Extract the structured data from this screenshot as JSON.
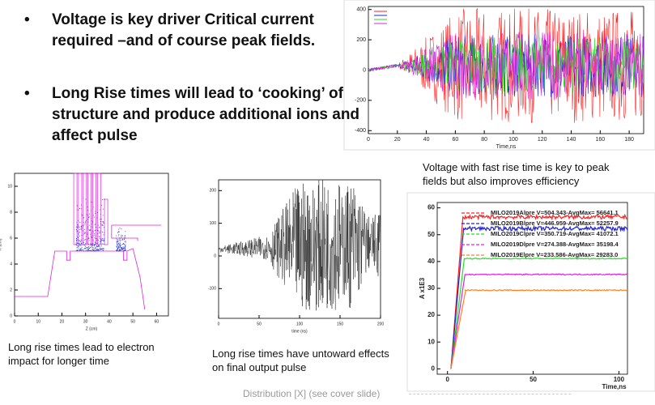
{
  "bullets": [
    "Voltage is key driver Critical current required –and of course peak fields.",
    "Long Rise times will lead to ‘cooking’ of structure and produce additional ions and affect pulse"
  ],
  "captions": {
    "left": "Long rise times lead to electron impact for longer time",
    "middle": "Long rise times have untoward effects on final output pulse",
    "right": "Voltage with fast rise time is key to peak fields but also improves efficiency"
  },
  "footer": "Distribution [X] (see cover slide)",
  "top_chart": {
    "xlabel": "Time,ns",
    "xlim": [
      0,
      190
    ],
    "ylim": [
      -420,
      420
    ],
    "xticks": [
      0,
      20,
      40,
      60,
      80,
      100,
      120,
      140,
      160,
      180
    ],
    "yticks": [
      -400,
      -200,
      0,
      200,
      400
    ]
  },
  "left_chart": {
    "xlabel": "Z (cm)",
    "ylabel": "R (cm)",
    "xlim": [
      0,
      65
    ],
    "ylim": [
      0,
      11
    ],
    "xticks": [
      0,
      10,
      20,
      30,
      40,
      50,
      60
    ],
    "yticks": [
      0,
      2,
      4,
      6,
      8,
      10
    ]
  },
  "middle_chart": {
    "xlabel": "time (ns)",
    "xlim": [
      0,
      200
    ],
    "ylim": [
      -191,
      233
    ],
    "xticks": [
      0,
      50,
      100,
      150,
      200
    ],
    "yticks": [
      -100,
      0,
      100,
      200
    ]
  },
  "right_chart": {
    "type": "line",
    "xlabel": "Time,ns",
    "ylabel": "A x1E3",
    "xlim": [
      -6,
      105
    ],
    "ylim": [
      -2,
      62
    ],
    "xticks": [
      0,
      50,
      100
    ],
    "yticks": [
      0,
      10,
      20,
      30,
      40,
      50,
      60
    ],
    "series": [
      {
        "name": "MILO2019Alpre V=504.343-AvgMax= 56641.1",
        "color": "#ff2020",
        "level": 56.6
      },
      {
        "name": "MILO2019Blpre V=446.959-AvgMax= 52257.9",
        "color": "#2020d0",
        "level": 52.3
      },
      {
        "name": "MILO2019Clpre V=350.719-AvgMax= 41072.1",
        "color": "#20e020",
        "level": 41.1
      },
      {
        "name": "MILO2019Dlpre V=274.388-AvgMax= 35198.4",
        "color": "#e020e0",
        "level": 35.2
      },
      {
        "name": "MILO2019Elpre V=233.586-AvgMax= 29283.0",
        "color": "#ff8020",
        "level": 29.3
      }
    ]
  }
}
